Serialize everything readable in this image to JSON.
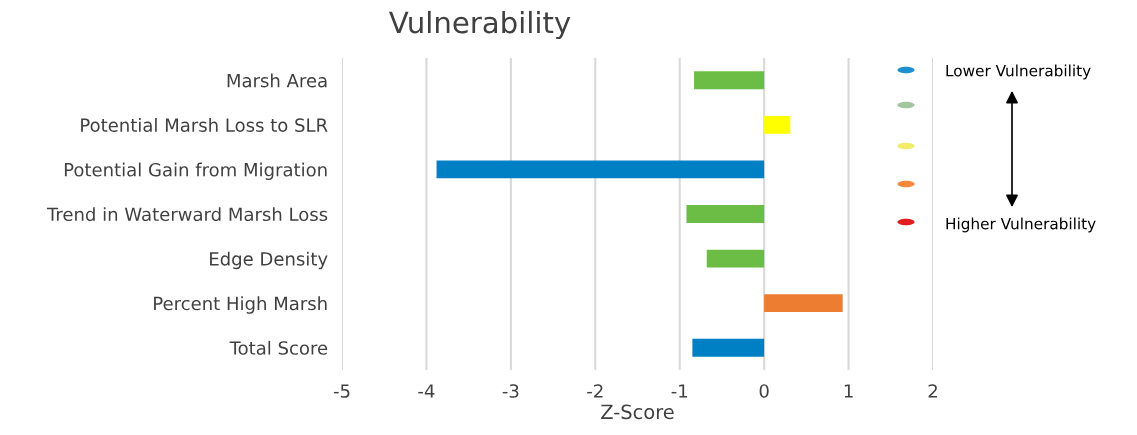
{
  "chart_data": {
    "type": "bar",
    "orientation": "horizontal",
    "title": "Vulnerability",
    "xlabel": "Z-Score",
    "categories": [
      "Marsh Area",
      "Potential Marsh Loss to SLR",
      "Potential Gain from Migration",
      "Trend in Waterward Marsh Loss",
      "Edge Density",
      "Percent High Marsh",
      "Total Score"
    ],
    "values": [
      -0.83,
      0.31,
      -3.88,
      -0.92,
      -0.68,
      0.93,
      -0.85
    ],
    "colors": [
      "#6bbd45",
      "#ffff00",
      "#0080c4",
      "#6bbd45",
      "#6bbd45",
      "#ed7d31",
      "#0080c4"
    ],
    "xlim": [
      -5,
      2
    ],
    "xticks": [
      -5,
      -4,
      -3,
      -2,
      -1,
      0,
      1,
      2
    ],
    "grid": "x",
    "annotations": [
      "Lower Vulnerability",
      "Higher Vulnerability"
    ]
  }
}
